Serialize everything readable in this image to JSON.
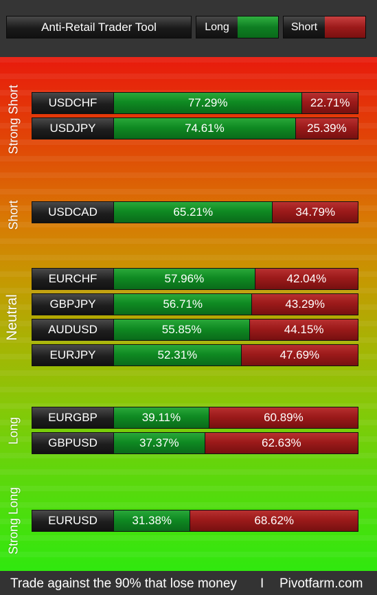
{
  "header": {
    "title": "Anti-Retail Trader Tool",
    "legend": {
      "long_label": "Long",
      "short_label": "Short"
    }
  },
  "colors": {
    "long": "#0f8a22",
    "short": "#9c1a1a",
    "gradient_top": "#e81a0c",
    "gradient_bottom": "#30e80e"
  },
  "groups": {
    "strong_short": "Strong Short",
    "short": "Short",
    "neutral": "Neutral",
    "long": "Long",
    "strong_long": "Strong Long"
  },
  "rows": [
    {
      "pair": "USDCHF",
      "long_pct": 77.29,
      "long": "77.29%",
      "short": "22.71%"
    },
    {
      "pair": "USDJPY",
      "long_pct": 74.61,
      "long": "74.61%",
      "short": "25.39%"
    },
    {
      "pair": "USDCAD",
      "long_pct": 65.21,
      "long": "65.21%",
      "short": "34.79%"
    },
    {
      "pair": "EURCHF",
      "long_pct": 57.96,
      "long": "57.96%",
      "short": "42.04%"
    },
    {
      "pair": "GBPJPY",
      "long_pct": 56.71,
      "long": "56.71%",
      "short": "43.29%"
    },
    {
      "pair": "AUDUSD",
      "long_pct": 55.85,
      "long": "55.85%",
      "short": "44.15%"
    },
    {
      "pair": "EURJPY",
      "long_pct": 52.31,
      "long": "52.31%",
      "short": "47.69%"
    },
    {
      "pair": "EURGBP",
      "long_pct": 39.11,
      "long": "39.11%",
      "short": "60.89%"
    },
    {
      "pair": "GBPUSD",
      "long_pct": 37.37,
      "long": "37.37%",
      "short": "62.63%"
    },
    {
      "pair": "EURUSD",
      "long_pct": 31.38,
      "long": "31.38%",
      "short": "68.62%"
    }
  ],
  "footer": {
    "slogan": "Trade against the 90% that lose money",
    "separator": "I",
    "site": "Pivotfarm.com"
  }
}
